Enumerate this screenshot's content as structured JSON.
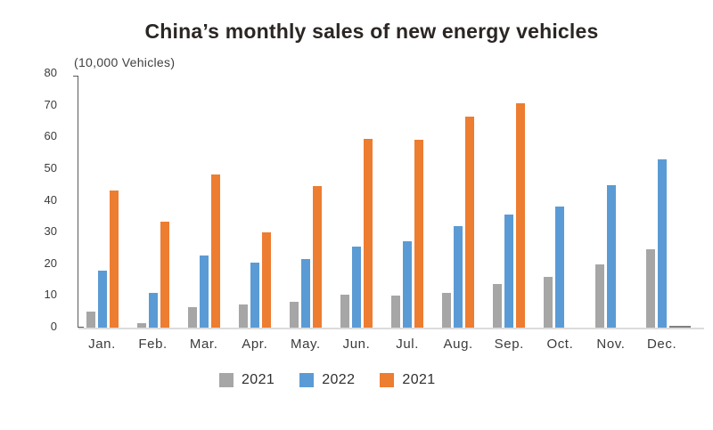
{
  "title": "China’s monthly sales of new energy vehicles",
  "chart_data": {
    "type": "bar",
    "title": "China’s monthly sales of new energy vehicles",
    "ylabel": "(10,000 Vehicles)",
    "xlabel": "",
    "ylim": [
      0,
      80
    ],
    "yticks": [
      0,
      10,
      20,
      30,
      40,
      50,
      60,
      70,
      80
    ],
    "grid": false,
    "legend_position": "bottom",
    "categories": [
      "Jan.",
      "Feb.",
      "Mar.",
      "Apr.",
      "May.",
      "Jun.",
      "Jul.",
      "Aug.",
      "Sep.",
      "Oct.",
      "Nov.",
      "Dec."
    ],
    "series": [
      {
        "name": "2021",
        "color": "#a6a6a6",
        "values": [
          5.0,
          1.5,
          6.5,
          7.2,
          8.1,
          10.3,
          10.0,
          11.0,
          13.8,
          16.0,
          20.0,
          24.8
        ]
      },
      {
        "name": "2022",
        "color": "#5b9bd5",
        "values": [
          17.9,
          11.0,
          22.6,
          20.6,
          21.7,
          25.6,
          27.1,
          32.1,
          35.7,
          38.3,
          45.0,
          53.1
        ]
      },
      {
        "name": "2021",
        "color": "#ed7d31",
        "values": [
          43.1,
          33.4,
          48.4,
          29.9,
          44.7,
          59.6,
          59.3,
          66.6,
          70.8,
          null,
          null,
          0
        ]
      }
    ]
  }
}
